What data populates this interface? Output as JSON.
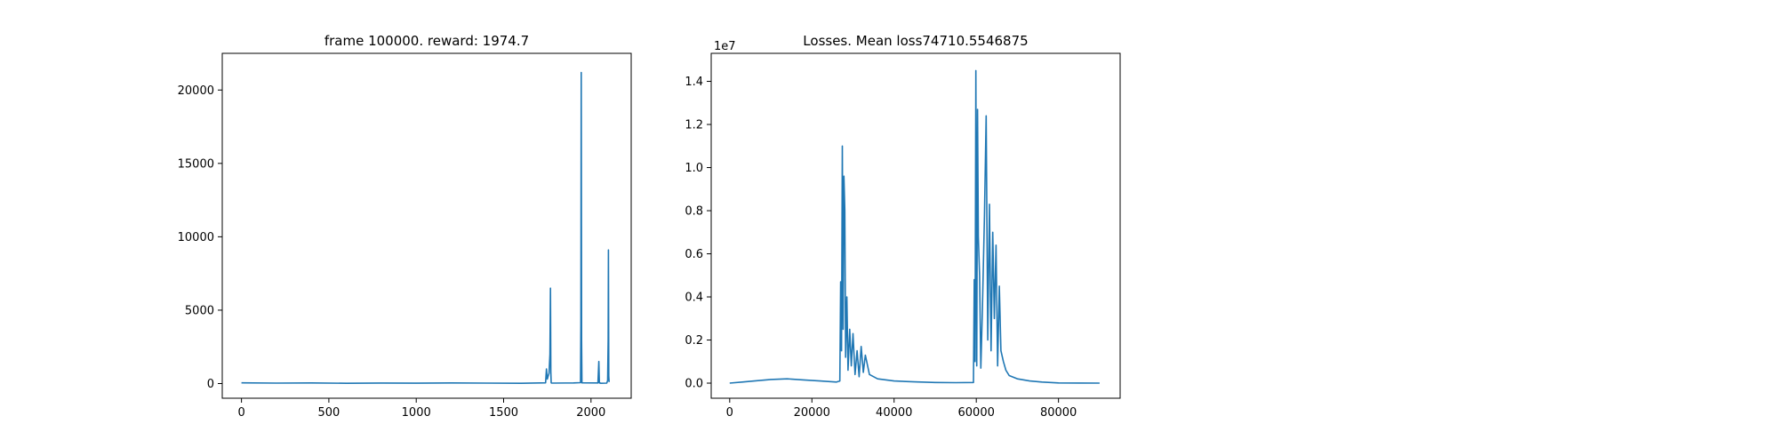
{
  "chart_data": [
    {
      "type": "line",
      "title": "frame 100000. reward: 1974.7",
      "xlabel": "",
      "ylabel": "",
      "xlim": [
        -110,
        2230
      ],
      "ylim": [
        -1000,
        22500
      ],
      "x_ticks": [
        0,
        500,
        1000,
        1500,
        2000
      ],
      "y_ticks": [
        0,
        5000,
        10000,
        15000,
        20000
      ],
      "x_tick_labels": [
        "0",
        "500",
        "1000",
        "1500",
        "2000"
      ],
      "y_tick_labels": [
        "0",
        "5000",
        "10000",
        "15000",
        "20000"
      ],
      "color": "#1f77b4",
      "grid": false,
      "series": [
        {
          "x": [
            0,
            200,
            400,
            600,
            800,
            1000,
            1200,
            1400,
            1600,
            1740,
            1745,
            1750,
            1755,
            1760,
            1765,
            1768,
            1770,
            1772,
            1775,
            1900,
            1940,
            1942,
            1944,
            1946,
            1948,
            2040,
            2045,
            2048,
            2050,
            2053,
            2055,
            2090,
            2095,
            2098,
            2100,
            2102,
            2104
          ],
          "y": [
            50,
            30,
            40,
            20,
            35,
            25,
            40,
            30,
            20,
            50,
            1000,
            300,
            500,
            700,
            2000,
            6500,
            800,
            50,
            30,
            40,
            60,
            4000,
            21200,
            3000,
            50,
            40,
            1500,
            50,
            30,
            40,
            20,
            30,
            200,
            3000,
            9100,
            500,
            100
          ]
        }
      ]
    },
    {
      "type": "line",
      "title": "Losses. Mean loss74710.5546875",
      "xlabel": "",
      "ylabel": "",
      "xlim": [
        -4500,
        95000
      ],
      "ylim": [
        -700000,
        15300000
      ],
      "x_ticks": [
        0,
        20000,
        40000,
        60000,
        80000
      ],
      "y_ticks": [
        0,
        2000000,
        4000000,
        6000000,
        8000000,
        10000000,
        12000000,
        14000000
      ],
      "x_tick_labels": [
        "0",
        "20000",
        "40000",
        "60000",
        "80000"
      ],
      "y_tick_labels": [
        "0.0",
        "0.2",
        "0.4",
        "0.6",
        "0.8",
        "1.0",
        "1.2",
        "1.4"
      ],
      "offset_label": "1e7",
      "color": "#1f77b4",
      "grid": false,
      "series": [
        {
          "x": [
            0,
            3000,
            6000,
            10000,
            14000,
            18000,
            22000,
            26000,
            26800,
            27000,
            27200,
            27400,
            27600,
            27800,
            28000,
            28200,
            28500,
            28800,
            29200,
            29600,
            30000,
            30500,
            31000,
            31500,
            32000,
            32500,
            33000,
            34000,
            36000,
            40000,
            45000,
            50000,
            55000,
            59300,
            59500,
            59700,
            59900,
            60100,
            60300,
            60500,
            60800,
            61100,
            61500,
            62000,
            62400,
            62800,
            63200,
            63600,
            64000,
            64400,
            64800,
            65200,
            65600,
            66000,
            66600,
            67200,
            68000,
            70000,
            73000,
            76000,
            80000,
            85000,
            90000
          ],
          "y": [
            0,
            50000,
            100000,
            170000,
            200000,
            150000,
            100000,
            50000,
            100000,
            4700000,
            1500000,
            11000000,
            2500000,
            9600000,
            8000000,
            1200000,
            4000000,
            600000,
            2500000,
            800000,
            2300000,
            400000,
            1500000,
            300000,
            1700000,
            500000,
            1300000,
            400000,
            200000,
            100000,
            60000,
            30000,
            20000,
            30000,
            4800000,
            1000000,
            14500000,
            800000,
            12700000,
            6800000,
            5000000,
            700000,
            3500000,
            7800000,
            12400000,
            2000000,
            8300000,
            1500000,
            7000000,
            3000000,
            6400000,
            800000,
            4500000,
            1500000,
            1000000,
            600000,
            350000,
            200000,
            100000,
            50000,
            10000,
            5000,
            0
          ]
        }
      ]
    }
  ]
}
